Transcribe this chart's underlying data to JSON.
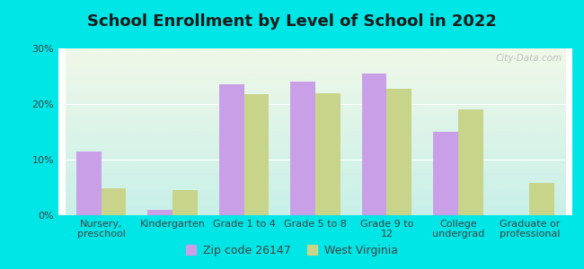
{
  "title": "School Enrollment by Level of School in 2022",
  "categories": [
    "Nursery,\npreschool",
    "Kindergarten",
    "Grade 1 to 4",
    "Grade 5 to 8",
    "Grade 9 to\n12",
    "College\nundergrad",
    "Graduate or\nprofessional"
  ],
  "zip_values": [
    11.5,
    1.0,
    23.5,
    24.0,
    25.5,
    15.0,
    0.0
  ],
  "wv_values": [
    4.8,
    4.5,
    21.8,
    21.9,
    22.7,
    19.0,
    5.8
  ],
  "zip_color": "#c9a0e8",
  "wv_color": "#c8d48a",
  "background_color": "#00e5e5",
  "grad_top": "#f0f8e8",
  "grad_bottom": "#c8f0e8",
  "ylim": [
    0,
    30
  ],
  "yticks": [
    0,
    10,
    20,
    30
  ],
  "legend_zip": "Zip code 26147",
  "legend_wv": "West Virginia",
  "bar_width": 0.35,
  "watermark": "City-Data.com",
  "title_fontsize": 13,
  "tick_fontsize": 8,
  "legend_fontsize": 9,
  "grid_color": "#ddeecc"
}
